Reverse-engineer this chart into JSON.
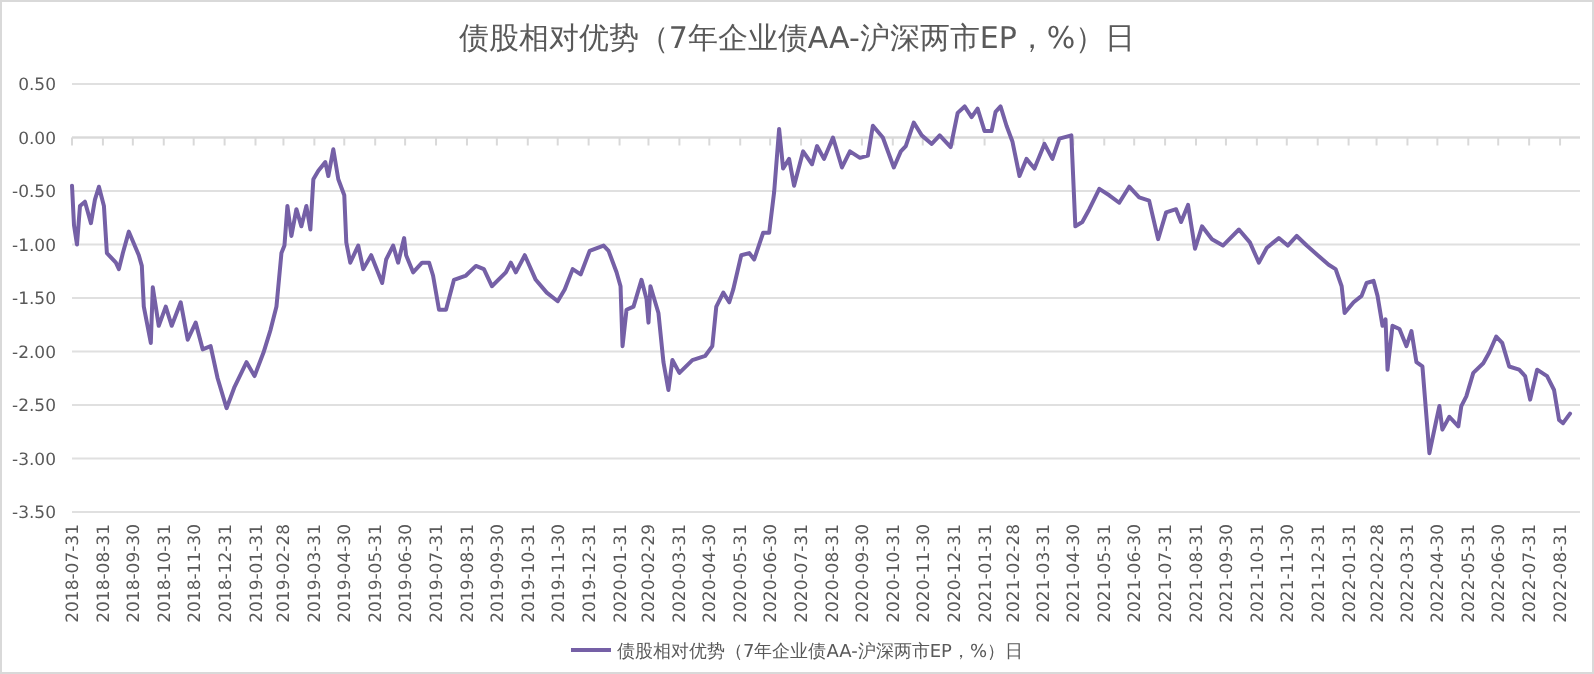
{
  "chart_data": {
    "type": "line",
    "title": "债股相对优势（7年企业债AA-沪深两市EP，%）日",
    "xlim": [
      "2018-07-31",
      "2022-09-20"
    ],
    "xticks": [
      "2018-07-31",
      "2018-08-31",
      "2018-09-30",
      "2018-10-31",
      "2018-11-30",
      "2018-12-31",
      "2019-01-31",
      "2019-02-28",
      "2019-03-31",
      "2019-04-30",
      "2019-05-31",
      "2019-06-30",
      "2019-07-31",
      "2019-08-31",
      "2019-09-30",
      "2019-10-31",
      "2019-11-30",
      "2019-12-31",
      "2020-01-31",
      "2020-02-29",
      "2020-03-31",
      "2020-04-30",
      "2020-05-31",
      "2020-06-30",
      "2020-07-31",
      "2020-08-31",
      "2020-09-30",
      "2020-10-31",
      "2020-11-30",
      "2020-12-31",
      "2021-01-31",
      "2021-02-28",
      "2021-03-31",
      "2021-04-30",
      "2021-05-31",
      "2021-06-30",
      "2021-07-31",
      "2021-08-31",
      "2021-09-30",
      "2021-10-31",
      "2021-11-30",
      "2021-12-31",
      "2022-01-31",
      "2022-02-28",
      "2022-03-31",
      "2022-04-30",
      "2022-05-31",
      "2022-06-30",
      "2022-07-31",
      "2022-08-31"
    ],
    "ylim": [
      -3.5,
      0.5
    ],
    "yticks": [
      {
        "value": 0.5,
        "label": "0.50"
      },
      {
        "value": 0,
        "label": "0.00"
      },
      {
        "value": -0.5,
        "label": "-0.50"
      },
      {
        "value": -1,
        "label": "-1.00"
      },
      {
        "value": -1.5,
        "label": "-1.50"
      },
      {
        "value": -2,
        "label": "-2.00"
      },
      {
        "value": -2.5,
        "label": "-2.50"
      },
      {
        "value": -3,
        "label": "-3.00"
      },
      {
        "value": -3.5,
        "label": "-3.50"
      }
    ],
    "grid": "y",
    "legend": "bottom",
    "series": [
      {
        "name": "债股相对优势（7年企业债AA-沪深两市EP，%）日",
        "color": "#7560a6",
        "x": [
          "2018-07-31",
          "2018-08-02",
          "2018-08-05",
          "2018-08-08",
          "2018-08-13",
          "2018-08-19",
          "2018-08-23",
          "2018-08-27",
          "2018-09-01",
          "2018-09-04",
          "2018-09-13",
          "2018-09-16",
          "2018-09-20",
          "2018-09-26",
          "2018-10-06",
          "2018-10-09",
          "2018-10-11",
          "2018-10-18",
          "2018-10-20",
          "2018-10-26",
          "2018-11-02",
          "2018-11-08",
          "2018-11-17",
          "2018-11-24",
          "2018-12-02",
          "2018-12-09",
          "2018-12-17",
          "2018-12-24",
          "2019-01-02",
          "2019-01-10",
          "2019-01-22",
          "2019-01-30",
          "2019-02-08",
          "2019-02-15",
          "2019-02-21",
          "2019-02-26",
          "2019-03-01",
          "2019-03-04",
          "2019-03-08",
          "2019-03-13",
          "2019-03-18",
          "2019-03-23",
          "2019-03-27",
          "2019-03-30",
          "2019-04-04",
          "2019-04-11",
          "2019-04-14",
          "2019-04-19",
          "2019-04-24",
          "2019-04-30",
          "2019-05-02",
          "2019-05-06",
          "2019-05-14",
          "2019-05-19",
          "2019-05-27",
          "2019-06-07",
          "2019-06-11",
          "2019-06-18",
          "2019-06-23",
          "2019-06-29",
          "2019-07-01",
          "2019-07-08",
          "2019-07-17",
          "2019-07-24",
          "2019-07-28",
          "2019-08-03",
          "2019-08-10",
          "2019-08-18",
          "2019-08-30",
          "2019-09-09",
          "2019-09-17",
          "2019-09-25",
          "2019-10-09",
          "2019-10-14",
          "2019-10-19",
          "2019-10-28",
          "2019-11-08",
          "2019-11-19",
          "2019-11-30",
          "2019-12-07",
          "2019-12-15",
          "2019-12-23",
          "2020-01-01",
          "2020-01-15",
          "2020-01-20",
          "2020-01-28",
          "2020-02-01",
          "2020-02-03",
          "2020-02-07",
          "2020-02-14",
          "2020-02-22",
          "2020-02-27",
          "2020-02-29",
          "2020-03-02",
          "2020-03-10",
          "2020-03-15",
          "2020-03-20",
          "2020-03-24",
          "2020-03-31",
          "2020-04-13",
          "2020-04-26",
          "2020-05-03",
          "2020-05-07",
          "2020-05-14",
          "2020-05-20",
          "2020-05-24",
          "2020-06-01",
          "2020-06-09",
          "2020-06-14",
          "2020-06-23",
          "2020-06-29",
          "2020-07-04",
          "2020-07-09",
          "2020-07-13",
          "2020-07-19",
          "2020-07-24",
          "2020-08-02",
          "2020-08-11",
          "2020-08-16",
          "2020-08-23",
          "2020-09-01",
          "2020-09-10",
          "2020-09-18",
          "2020-09-28",
          "2020-10-06",
          "2020-10-11",
          "2020-10-21",
          "2020-11-01",
          "2020-11-08",
          "2020-11-13",
          "2020-11-21",
          "2020-11-29",
          "2020-12-09",
          "2020-12-17",
          "2020-12-28",
          "2021-01-04",
          "2021-01-11",
          "2021-01-18",
          "2021-01-24",
          "2021-01-31",
          "2021-02-07",
          "2021-02-11",
          "2021-02-16",
          "2021-02-22",
          "2021-02-28",
          "2021-03-07",
          "2021-03-14",
          "2021-03-22",
          "2021-04-01",
          "2021-04-09",
          "2021-04-16",
          "2021-04-28",
          "2021-05-02",
          "2021-05-09",
          "2021-05-16",
          "2021-05-26",
          "2021-06-05",
          "2021-06-15",
          "2021-06-25",
          "2021-07-05",
          "2021-07-15",
          "2021-07-24",
          "2021-08-01",
          "2021-08-11",
          "2021-08-16",
          "2021-08-23",
          "2021-08-30",
          "2021-09-06",
          "2021-09-16",
          "2021-09-27",
          "2021-10-13",
          "2021-10-24",
          "2021-11-02",
          "2021-11-10",
          "2021-11-22",
          "2021-12-01",
          "2021-12-10",
          "2021-12-20",
          "2021-12-31",
          "2022-01-11",
          "2022-01-18",
          "2022-01-24",
          "2022-01-27",
          "2022-02-05",
          "2022-02-13",
          "2022-02-18",
          "2022-02-25",
          "2022-03-01",
          "2022-03-06",
          "2022-03-09",
          "2022-03-11",
          "2022-03-16",
          "2022-03-23",
          "2022-03-30",
          "2022-04-04",
          "2022-04-09",
          "2022-04-15",
          "2022-04-22",
          "2022-04-29",
          "2022-05-02",
          "2022-05-05",
          "2022-05-12",
          "2022-05-21",
          "2022-05-24",
          "2022-05-29",
          "2022-06-05",
          "2022-06-15",
          "2022-06-21",
          "2022-06-28",
          "2022-07-04",
          "2022-07-11",
          "2022-07-21",
          "2022-07-27",
          "2022-08-01",
          "2022-08-08",
          "2022-08-18",
          "2022-08-25",
          "2022-08-30",
          "2022-09-03",
          "2022-09-10"
        ],
        "values": [
          -0.45,
          -0.82,
          -1.0,
          -0.64,
          -0.6,
          -0.8,
          -0.58,
          -0.46,
          -0.64,
          -1.08,
          -1.17,
          -1.23,
          -1.08,
          -0.88,
          -1.1,
          -1.2,
          -1.58,
          -1.92,
          -1.4,
          -1.76,
          -1.58,
          -1.76,
          -1.54,
          -1.89,
          -1.73,
          -1.98,
          -1.95,
          -2.25,
          -2.53,
          -2.33,
          -2.1,
          -2.23,
          -2.01,
          -1.8,
          -1.58,
          -1.08,
          -1.01,
          -0.64,
          -0.92,
          -0.67,
          -0.83,
          -0.64,
          -0.86,
          -0.39,
          -0.31,
          -0.23,
          -0.36,
          -0.11,
          -0.39,
          -0.54,
          -0.98,
          -1.17,
          -1.01,
          -1.23,
          -1.1,
          -1.36,
          -1.14,
          -1.01,
          -1.17,
          -0.94,
          -1.1,
          -1.26,
          -1.17,
          -1.17,
          -1.29,
          -1.61,
          -1.61,
          -1.33,
          -1.29,
          -1.2,
          -1.23,
          -1.39,
          -1.26,
          -1.17,
          -1.26,
          -1.1,
          -1.33,
          -1.45,
          -1.53,
          -1.42,
          -1.23,
          -1.28,
          -1.06,
          -1.01,
          -1.06,
          -1.26,
          -1.39,
          -1.95,
          -1.61,
          -1.58,
          -1.33,
          -1.51,
          -1.73,
          -1.39,
          -1.64,
          -2.1,
          -2.36,
          -2.08,
          -2.2,
          -2.08,
          -2.04,
          -1.95,
          -1.58,
          -1.45,
          -1.54,
          -1.42,
          -1.1,
          -1.08,
          -1.14,
          -0.89,
          -0.89,
          -0.51,
          0.08,
          -0.29,
          -0.2,
          -0.45,
          -0.13,
          -0.25,
          -0.08,
          -0.2,
          0.0,
          -0.28,
          -0.13,
          -0.19,
          -0.17,
          0.11,
          0.0,
          -0.28,
          -0.13,
          -0.08,
          0.14,
          0.02,
          -0.06,
          0.02,
          -0.09,
          0.23,
          0.29,
          0.19,
          0.27,
          0.06,
          0.06,
          0.24,
          0.29,
          0.11,
          -0.04,
          -0.36,
          -0.2,
          -0.29,
          -0.06,
          -0.2,
          -0.01,
          0.02,
          -0.83,
          -0.79,
          -0.67,
          -0.48,
          -0.54,
          -0.61,
          -0.46,
          -0.56,
          -0.59,
          -0.95,
          -0.7,
          -0.67,
          -0.79,
          -0.63,
          -1.04,
          -0.83,
          -0.95,
          -1.01,
          -0.86,
          -0.98,
          -1.17,
          -1.03,
          -0.94,
          -1.01,
          -0.92,
          -1.01,
          -1.1,
          -1.19,
          -1.23,
          -1.39,
          -1.64,
          -1.54,
          -1.48,
          -1.36,
          -1.34,
          -1.48,
          -1.76,
          -1.7,
          -2.17,
          -1.76,
          -1.79,
          -1.95,
          -1.81,
          -2.1,
          -2.14,
          -2.95,
          -2.64,
          -2.51,
          -2.73,
          -2.61,
          -2.7,
          -2.51,
          -2.42,
          -2.2,
          -2.11,
          -2.01,
          -1.86,
          -1.92,
          -2.14,
          -2.17,
          -2.23,
          -2.45,
          -2.17,
          -2.23,
          -2.36,
          -2.64,
          -2.67,
          -2.58
        ]
      }
    ]
  }
}
